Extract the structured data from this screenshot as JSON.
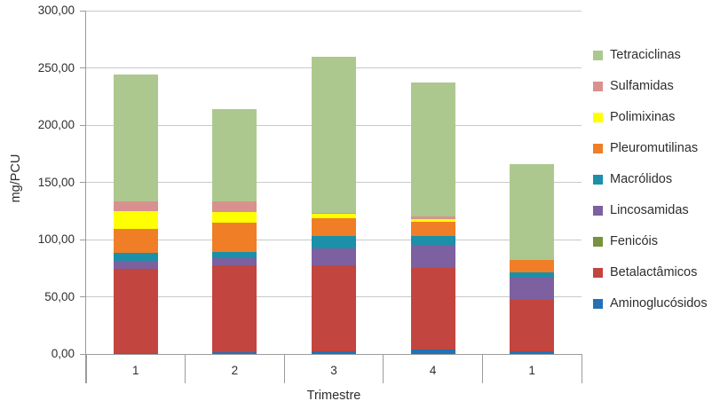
{
  "chart_data": {
    "type": "bar",
    "stacked": true,
    "title": "",
    "xlabel": "Trimestre",
    "ylabel": "mg/PCU",
    "ylim": [
      0,
      300
    ],
    "grid": true,
    "legend_position": "right",
    "categories": [
      "1",
      "2",
      "3",
      "4",
      "1"
    ],
    "yticks": [
      {
        "label": "0,00",
        "value": 0
      },
      {
        "label": "50,00",
        "value": 50
      },
      {
        "label": "100,00",
        "value": 100
      },
      {
        "label": "150,00",
        "value": 150
      },
      {
        "label": "200,00",
        "value": 200
      },
      {
        "label": "250,00",
        "value": 250
      },
      {
        "label": "300,00",
        "value": 300
      }
    ],
    "series": [
      {
        "name": "Aminoglucósidos",
        "color": "#2272b5",
        "values": [
          1.0,
          1.5,
          2.5,
          4.0,
          2.0
        ]
      },
      {
        "name": "Betalactâmicos",
        "color": "#c3453f",
        "values": [
          73.5,
          76.0,
          75.0,
          71.0,
          45.0
        ]
      },
      {
        "name": "Fenicóis",
        "color": "#77933c",
        "values": [
          0,
          0,
          0,
          0,
          0
        ]
      },
      {
        "name": "Lincosamidas",
        "color": "#7d60a0",
        "values": [
          7.0,
          6.0,
          15.0,
          20.0,
          20.0
        ]
      },
      {
        "name": "Macrólidos",
        "color": "#1b90a8",
        "values": [
          7.0,
          5.5,
          10.5,
          8.5,
          4.5
        ]
      },
      {
        "name": "Pleuromutilinas",
        "color": "#f07e27",
        "values": [
          21.0,
          25.5,
          16.0,
          12.0,
          11.0
        ]
      },
      {
        "name": "Polimixinas",
        "color": "#feff00",
        "values": [
          15.5,
          9.5,
          3.5,
          2.5,
          0
        ]
      },
      {
        "name": "Sulfamidas",
        "color": "#d9918f",
        "values": [
          8.5,
          9.5,
          1.0,
          2.5,
          0
        ]
      },
      {
        "name": "Tetraciclinas",
        "color": "#adc88e",
        "values": [
          111.0,
          80.5,
          136.0,
          117.0,
          83.5
        ]
      }
    ],
    "bar_totals": [
      244.5,
      214.0,
      259.5,
      237.5,
      166.0
    ]
  },
  "axes": {
    "y_title": "mg/PCU",
    "x_title": "Trimestre"
  }
}
